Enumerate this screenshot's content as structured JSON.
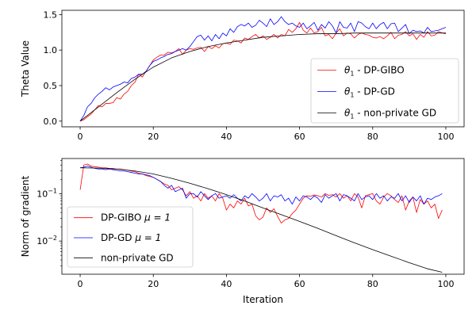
{
  "chart_data": [
    {
      "type": "line",
      "title": "",
      "xlabel": "",
      "ylabel": "Theta Value",
      "xlim": [
        -5,
        105
      ],
      "ylim": [
        -0.08,
        1.56
      ],
      "xticks": [
        0,
        20,
        40,
        60,
        80,
        100
      ],
      "xtick_labels": [
        "0",
        "20",
        "40",
        "60",
        "80",
        "100"
      ],
      "yticks": [
        0.0,
        0.5,
        1.0,
        1.5
      ],
      "ytick_labels": [
        "0.0",
        "0.5",
        "1.0",
        "1.5"
      ],
      "legend_position": "lower-right",
      "series": [
        {
          "name": "θ1 - DP-GIBO",
          "legend_main": "θ",
          "legend_sub": "1",
          "legend_rest": " - DP-GIBO",
          "color": "#ff0000",
          "x": [
            0,
            1,
            2,
            3,
            4,
            5,
            6,
            7,
            8,
            9,
            10,
            11,
            12,
            13,
            14,
            15,
            16,
            17,
            18,
            19,
            20,
            21,
            22,
            23,
            24,
            25,
            26,
            27,
            28,
            29,
            30,
            31,
            32,
            33,
            34,
            35,
            36,
            37,
            38,
            39,
            40,
            41,
            42,
            43,
            44,
            45,
            46,
            47,
            48,
            49,
            50,
            51,
            52,
            53,
            54,
            55,
            56,
            57,
            58,
            59,
            60,
            61,
            62,
            63,
            64,
            65,
            66,
            67,
            68,
            69,
            70,
            71,
            72,
            73,
            74,
            75,
            76,
            77,
            78,
            79,
            80,
            81,
            82,
            83,
            84,
            85,
            86,
            87,
            88,
            89,
            90,
            91,
            92,
            93,
            94,
            95,
            96,
            97,
            98,
            99,
            100
          ],
          "values": [
            0.0,
            0.02,
            0.06,
            0.1,
            0.16,
            0.22,
            0.2,
            0.25,
            0.25,
            0.26,
            0.33,
            0.31,
            0.38,
            0.42,
            0.5,
            0.55,
            0.66,
            0.62,
            0.7,
            0.78,
            0.86,
            0.9,
            0.93,
            0.93,
            0.97,
            0.96,
            0.98,
            1.02,
            0.94,
            1.0,
            1.02,
            1.01,
            1.03,
            1.04,
            0.98,
            1.05,
            1.02,
            1.06,
            1.03,
            1.09,
            1.1,
            1.08,
            1.14,
            1.13,
            1.1,
            1.17,
            1.15,
            1.19,
            1.22,
            1.17,
            1.2,
            1.15,
            1.18,
            1.22,
            1.17,
            1.22,
            1.2,
            1.29,
            1.25,
            1.3,
            1.39,
            1.28,
            1.24,
            1.31,
            1.24,
            1.26,
            1.32,
            1.2,
            1.22,
            1.16,
            1.24,
            1.3,
            1.2,
            1.24,
            1.23,
            1.17,
            1.22,
            1.24,
            1.22,
            1.21,
            1.18,
            1.17,
            1.19,
            1.16,
            1.2,
            1.25,
            1.16,
            1.21,
            1.22,
            1.26,
            1.2,
            1.23,
            1.15,
            1.22,
            1.18,
            1.26,
            1.2,
            1.21,
            1.26,
            1.24,
            1.23
          ]
        },
        {
          "name": "θ1 - DP-GD",
          "legend_main": "θ",
          "legend_sub": "1",
          "legend_rest": " - DP-GD",
          "color": "#0000ff",
          "x": [
            0,
            1,
            2,
            3,
            4,
            5,
            6,
            7,
            8,
            9,
            10,
            11,
            12,
            13,
            14,
            15,
            16,
            17,
            18,
            19,
            20,
            21,
            22,
            23,
            24,
            25,
            26,
            27,
            28,
            29,
            30,
            31,
            32,
            33,
            34,
            35,
            36,
            37,
            38,
            39,
            40,
            41,
            42,
            43,
            44,
            45,
            46,
            47,
            48,
            49,
            50,
            51,
            52,
            53,
            54,
            55,
            56,
            57,
            58,
            59,
            60,
            61,
            62,
            63,
            64,
            65,
            66,
            67,
            68,
            69,
            70,
            71,
            72,
            73,
            74,
            75,
            76,
            77,
            78,
            79,
            80,
            81,
            82,
            83,
            84,
            85,
            86,
            87,
            88,
            89,
            90,
            91,
            92,
            93,
            94,
            95,
            96,
            97,
            98,
            99,
            100
          ],
          "values": [
            0.0,
            0.08,
            0.2,
            0.25,
            0.33,
            0.38,
            0.42,
            0.47,
            0.44,
            0.48,
            0.5,
            0.52,
            0.55,
            0.54,
            0.6,
            0.62,
            0.66,
            0.66,
            0.7,
            0.78,
            0.84,
            0.86,
            0.89,
            0.91,
            0.94,
            0.95,
            0.98,
            1.0,
            1.02,
            1.0,
            1.05,
            1.12,
            1.19,
            1.21,
            1.14,
            1.2,
            1.13,
            1.22,
            1.16,
            1.24,
            1.2,
            1.3,
            1.25,
            1.33,
            1.36,
            1.34,
            1.38,
            1.32,
            1.35,
            1.42,
            1.38,
            1.33,
            1.44,
            1.36,
            1.4,
            1.47,
            1.4,
            1.36,
            1.38,
            1.34,
            1.32,
            1.38,
            1.3,
            1.34,
            1.39,
            1.28,
            1.36,
            1.31,
            1.4,
            1.34,
            1.24,
            1.4,
            1.32,
            1.31,
            1.38,
            1.26,
            1.4,
            1.38,
            1.33,
            1.3,
            1.38,
            1.3,
            1.36,
            1.39,
            1.3,
            1.37,
            1.38,
            1.26,
            1.31,
            1.36,
            1.23,
            1.28,
            1.26,
            1.27,
            1.24,
            1.32,
            1.26,
            1.27,
            1.28,
            1.3,
            1.32
          ]
        },
        {
          "name": "θ1 - non-private GD",
          "legend_main": "θ",
          "legend_sub": "1",
          "legend_rest": " - non-private GD",
          "color": "#000000",
          "x": [
            0,
            5,
            10,
            15,
            20,
            25,
            30,
            35,
            40,
            45,
            50,
            55,
            60,
            65,
            70,
            75,
            80,
            85,
            90,
            95,
            100
          ],
          "values": [
            0.0,
            0.2,
            0.4,
            0.59,
            0.76,
            0.89,
            0.98,
            1.05,
            1.1,
            1.14,
            1.18,
            1.2,
            1.22,
            1.23,
            1.23,
            1.24,
            1.24,
            1.24,
            1.24,
            1.24,
            1.24
          ]
        }
      ]
    },
    {
      "type": "line",
      "title": "",
      "xlabel": "Iteration",
      "ylabel": "Norm of gradient",
      "yscale": "log",
      "xlim": [
        -5,
        105
      ],
      "ylim": [
        0.002,
        0.55
      ],
      "xticks": [
        0,
        20,
        40,
        60,
        80,
        100
      ],
      "xtick_labels": [
        "0",
        "20",
        "40",
        "60",
        "80",
        "100"
      ],
      "yticks": [
        0.01,
        0.1
      ],
      "ytick_base": "10",
      "ytick_exponents": [
        "−2",
        "−1"
      ],
      "legend_position": "lower-left",
      "series": [
        {
          "name": "DP-GIBO μ = 1",
          "legend_text": "DP-GIBO ",
          "legend_math": "μ = 1",
          "color": "#ff0000",
          "x": [
            0,
            1,
            2,
            3,
            4,
            5,
            6,
            7,
            8,
            9,
            10,
            11,
            12,
            13,
            14,
            15,
            16,
            17,
            18,
            19,
            20,
            21,
            22,
            23,
            24,
            25,
            26,
            27,
            28,
            29,
            30,
            31,
            32,
            33,
            34,
            35,
            36,
            37,
            38,
            39,
            40,
            41,
            42,
            43,
            44,
            45,
            46,
            47,
            48,
            49,
            50,
            51,
            52,
            53,
            54,
            55,
            56,
            57,
            58,
            59,
            60,
            61,
            62,
            63,
            64,
            65,
            66,
            67,
            68,
            69,
            70,
            71,
            72,
            73,
            74,
            75,
            76,
            77,
            78,
            79,
            80,
            81,
            82,
            83,
            84,
            85,
            86,
            87,
            88,
            89,
            90,
            91,
            92,
            93,
            94,
            95,
            96,
            97,
            98,
            99
          ],
          "values": [
            0.12,
            0.4,
            0.42,
            0.38,
            0.37,
            0.36,
            0.35,
            0.35,
            0.34,
            0.34,
            0.33,
            0.33,
            0.32,
            0.31,
            0.3,
            0.29,
            0.27,
            0.26,
            0.24,
            0.23,
            0.22,
            0.2,
            0.18,
            0.16,
            0.15,
            0.12,
            0.13,
            0.14,
            0.12,
            0.09,
            0.11,
            0.08,
            0.09,
            0.07,
            0.1,
            0.08,
            0.09,
            0.07,
            0.1,
            0.08,
            0.045,
            0.06,
            0.05,
            0.07,
            0.06,
            0.08,
            0.055,
            0.06,
            0.034,
            0.028,
            0.032,
            0.05,
            0.04,
            0.048,
            0.033,
            0.024,
            0.028,
            0.03,
            0.038,
            0.045,
            0.06,
            0.08,
            0.09,
            0.088,
            0.094,
            0.09,
            0.085,
            0.1,
            0.092,
            0.095,
            0.085,
            0.1,
            0.08,
            0.09,
            0.07,
            0.1,
            0.085,
            0.05,
            0.09,
            0.095,
            0.1,
            0.07,
            0.06,
            0.085,
            0.1,
            0.09,
            0.075,
            0.065,
            0.09,
            0.045,
            0.07,
            0.085,
            0.04,
            0.075,
            0.06,
            0.07,
            0.05,
            0.06,
            0.03,
            0.045
          ]
        },
        {
          "name": "DP-GD μ = 1",
          "legend_text": "DP-GD ",
          "legend_math": "μ = 1",
          "color": "#0000ff",
          "x": [
            0,
            1,
            2,
            3,
            4,
            5,
            6,
            7,
            8,
            9,
            10,
            11,
            12,
            13,
            14,
            15,
            16,
            17,
            18,
            19,
            20,
            21,
            22,
            23,
            24,
            25,
            26,
            27,
            28,
            29,
            30,
            31,
            32,
            33,
            34,
            35,
            36,
            37,
            38,
            39,
            40,
            41,
            42,
            43,
            44,
            45,
            46,
            47,
            48,
            49,
            50,
            51,
            52,
            53,
            54,
            55,
            56,
            57,
            58,
            59,
            60,
            61,
            62,
            63,
            64,
            65,
            66,
            67,
            68,
            69,
            70,
            71,
            72,
            73,
            74,
            75,
            76,
            77,
            78,
            79,
            80,
            81,
            82,
            83,
            84,
            85,
            86,
            87,
            88,
            89,
            90,
            91,
            92,
            93,
            94,
            95,
            96,
            97,
            98,
            99
          ],
          "values": [
            0.35,
            0.36,
            0.38,
            0.36,
            0.34,
            0.33,
            0.33,
            0.32,
            0.33,
            0.32,
            0.31,
            0.3,
            0.3,
            0.29,
            0.28,
            0.27,
            0.26,
            0.26,
            0.25,
            0.24,
            0.22,
            0.2,
            0.18,
            0.15,
            0.13,
            0.15,
            0.11,
            0.12,
            0.13,
            0.08,
            0.1,
            0.1,
            0.085,
            0.11,
            0.09,
            0.075,
            0.09,
            0.1,
            0.08,
            0.085,
            0.09,
            0.08,
            0.095,
            0.08,
            0.07,
            0.09,
            0.08,
            0.1,
            0.085,
            0.07,
            0.08,
            0.1,
            0.07,
            0.09,
            0.085,
            0.095,
            0.07,
            0.08,
            0.06,
            0.085,
            0.07,
            0.09,
            0.085,
            0.075,
            0.09,
            0.08,
            0.065,
            0.095,
            0.08,
            0.09,
            0.1,
            0.07,
            0.095,
            0.09,
            0.08,
            0.07,
            0.1,
            0.075,
            0.085,
            0.09,
            0.075,
            0.1,
            0.08,
            0.09,
            0.07,
            0.085,
            0.08,
            0.1,
            0.07,
            0.09,
            0.065,
            0.085,
            0.07,
            0.09,
            0.06,
            0.08,
            0.075,
            0.085,
            0.09,
            0.1
          ]
        },
        {
          "name": "non-private GD",
          "legend_text": "non-private GD",
          "legend_math": "",
          "color": "#000000",
          "x": [
            0,
            5,
            10,
            15,
            20,
            25,
            30,
            35,
            40,
            45,
            50,
            55,
            60,
            65,
            70,
            75,
            80,
            85,
            90,
            95,
            99
          ],
          "values": [
            0.35,
            0.345,
            0.33,
            0.3,
            0.26,
            0.21,
            0.165,
            0.127,
            0.095,
            0.07,
            0.05,
            0.036,
            0.026,
            0.0185,
            0.013,
            0.0092,
            0.0066,
            0.0048,
            0.0035,
            0.0026,
            0.0022
          ]
        }
      ]
    }
  ]
}
